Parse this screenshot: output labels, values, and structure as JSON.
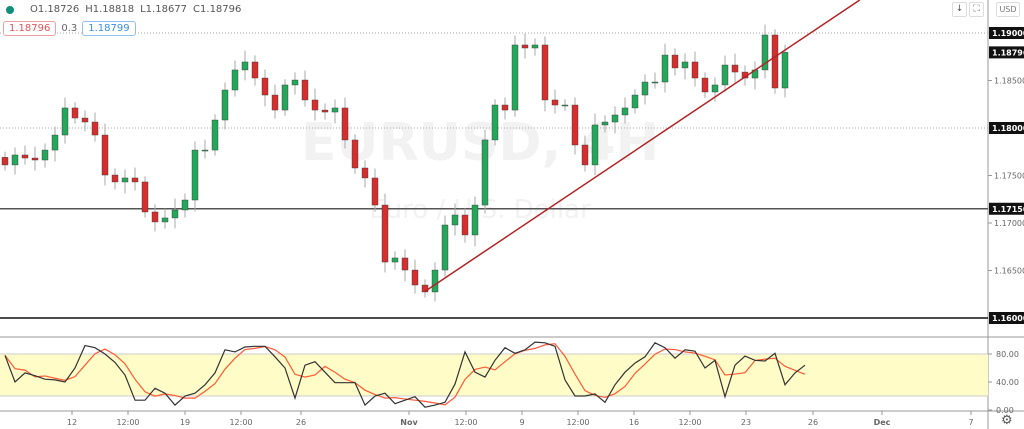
{
  "legend": {
    "open": "O1.18726",
    "high": "H1.18818",
    "low": "L1.18677",
    "close": "C1.18796"
  },
  "quote": {
    "bid": "1.18796",
    "spread": "0.3",
    "ask": "1.18799"
  },
  "toolbar": {
    "scroll_icon": "arrow-down-icon",
    "reset_icon": "fit-icon",
    "currency": "USD",
    "settings_icon": "gear-icon"
  },
  "watermark": {
    "symbol": "EURUSD, 4H",
    "name": "Euro / U.S. Dollar"
  },
  "colors": {
    "up": "#26a65b",
    "down": "#d32f2f",
    "trendline": "#b22222",
    "stoch_k": "#333333",
    "stoch_d": "#ff5a36",
    "band": "#fffcc8",
    "level_line": "#333333"
  },
  "chart_data": {
    "type": "candlestick",
    "price_axis": {
      "range": [
        1.1585,
        1.1935
      ],
      "ticks": [
        "1.18500",
        "1.17500",
        "1.17000",
        "1.16500"
      ]
    },
    "price_tags": [
      {
        "value": 1.19,
        "label": "1.19000",
        "line": "dotted"
      },
      {
        "value": 1.18796,
        "label": "1.18796",
        "line": "none"
      },
      {
        "value": 1.18,
        "label": "1.18000",
        "line": "dotted"
      },
      {
        "value": 1.1715,
        "label": "1.17150",
        "line": "solid"
      },
      {
        "value": 1.16,
        "label": "1.16000",
        "line": "solid"
      }
    ],
    "trendline": {
      "from_index": 42,
      "from_price": 1.1628,
      "to_price_at_last": 1.1882
    },
    "closes": [
      1.17611,
      1.17716,
      1.17684,
      1.17663,
      1.17768,
      1.17926,
      1.18211,
      1.18105,
      1.18063,
      1.17926,
      1.17505,
      1.17432,
      1.17474,
      1.17432,
      1.17116,
      1.17011,
      1.17053,
      1.17137,
      1.17242,
      1.17768,
      1.17768,
      1.18084,
      1.184,
      1.18611,
      1.18695,
      1.18526,
      1.18347,
      1.18189,
      1.18453,
      1.18505,
      1.18295,
      1.18189,
      1.18168,
      1.18211,
      1.17874,
      1.17579,
      1.17474,
      1.17189,
      1.16589,
      1.16632,
      1.16505,
      1.16347,
      1.16274,
      1.16505,
      1.16979,
      1.17084,
      1.16874,
      1.17189,
      1.17874,
      1.18242,
      1.18189,
      1.18874,
      1.18842,
      1.18874,
      1.18295,
      1.18242,
      1.18242,
      1.17821,
      1.17611,
      1.18032,
      1.18063,
      1.18137,
      1.18211,
      1.18347,
      1.18484,
      1.18484,
      1.18768,
      1.18632,
      1.18695,
      1.18526,
      1.18379,
      1.18453,
      1.18663,
      1.18589,
      1.18526,
      1.18611,
      1.18979,
      1.18421,
      1.18796
    ],
    "time_axis": [
      "12",
      "12:00",
      "19",
      "12:00",
      "26",
      "Nov",
      "12:00",
      "9",
      "12:00",
      "16",
      "12:00",
      "23",
      "26",
      "Dec",
      "7"
    ],
    "stochastic": {
      "range": [
        0,
        100
      ],
      "band": [
        20,
        80
      ],
      "ticks": [
        "80.00",
        "40.00",
        "0.00"
      ],
      "k": [
        78,
        40,
        53,
        49,
        44,
        43,
        40,
        60,
        92,
        89,
        80,
        68,
        50,
        14,
        14,
        31,
        24,
        7,
        20,
        24,
        36,
        53,
        86,
        83,
        90,
        91,
        91,
        76,
        60,
        17,
        64,
        69,
        54,
        39,
        39,
        39,
        7,
        20,
        24,
        9,
        14,
        19,
        4,
        7,
        11,
        37,
        83,
        54,
        47,
        71,
        89,
        81,
        86,
        97,
        96,
        91,
        43,
        20,
        20,
        23,
        11,
        36,
        54,
        67,
        76,
        96,
        89,
        74,
        86,
        84,
        60,
        71,
        19,
        64,
        77,
        71,
        70,
        81,
        36,
        53,
        64
      ]
    }
  }
}
